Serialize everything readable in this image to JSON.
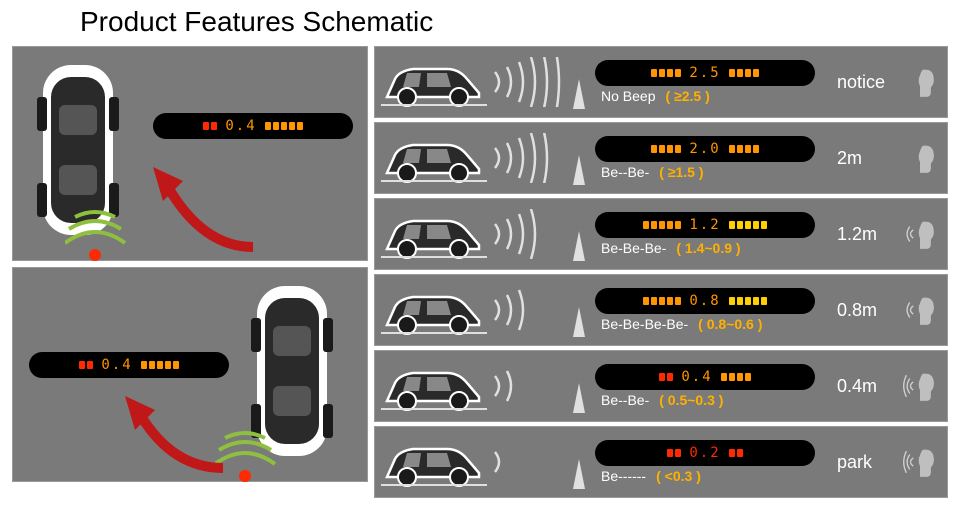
{
  "title": "Product Features Schematic",
  "colors": {
    "panel": "#7a7a7a",
    "display_bg": "#000000",
    "amber": "#ff9500",
    "yellow": "#ffd000",
    "green": "#8fbf3f",
    "red": "#ff2a00",
    "white": "#ffffff",
    "car_outline": "#ffffff",
    "car_body": "#2a2a2a",
    "threshold": "#ffb000"
  },
  "left_display": "0.4",
  "rows": [
    {
      "reading": "2.5",
      "beep": "No Beep",
      "threshold": "( ≥2.5 )",
      "distance": "notice",
      "left_color": "amber",
      "right_color": "amber",
      "lbars": 4,
      "rbars": 4,
      "digit_color": "amber",
      "wave_n": 6,
      "head_waves": 0
    },
    {
      "reading": "2.0",
      "beep": "Be--Be-",
      "threshold": "( ≥1.5 )",
      "distance": "2m",
      "left_color": "amber",
      "right_color": "amber",
      "lbars": 4,
      "rbars": 4,
      "digit_color": "amber",
      "wave_n": 5,
      "head_waves": 0
    },
    {
      "reading": "1.2",
      "beep": "Be-Be-Be-",
      "threshold": "( 1.4~0.9 )",
      "distance": "1.2m",
      "left_color": "amber",
      "right_color": "yellow",
      "lbars": 5,
      "rbars": 5,
      "digit_color": "amber",
      "wave_n": 4,
      "head_waves": 2
    },
    {
      "reading": "0.8",
      "beep": "Be-Be-Be-Be-",
      "threshold": "( 0.8~0.6 )",
      "distance": "0.8m",
      "left_color": "amber",
      "right_color": "yellow",
      "lbars": 5,
      "rbars": 5,
      "digit_color": "amber",
      "wave_n": 3,
      "head_waves": 2
    },
    {
      "reading": "0.4",
      "beep": "Be--Be-",
      "threshold": "( 0.5~0.3 )",
      "distance": "0.4m",
      "left_color": "red",
      "right_color": "amber",
      "lbars": 2,
      "rbars": 4,
      "digit_color": "amber",
      "wave_n": 2,
      "head_waves": 3
    },
    {
      "reading": "0.2",
      "beep": "Be------",
      "threshold": "( <0.3 )",
      "distance": "park",
      "left_color": "red",
      "right_color": "red",
      "lbars": 2,
      "rbars": 2,
      "digit_color": "red",
      "wave_n": 1,
      "head_waves": 3
    }
  ]
}
